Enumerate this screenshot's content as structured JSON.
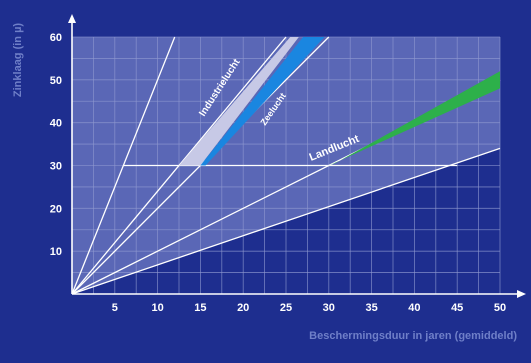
{
  "chart_data": {
    "type": "line",
    "xlabel": "Beschermingsduur in jaren (gemiddeld)",
    "ylabel": "Zinklaag (in µ)",
    "xlim": [
      0,
      50
    ],
    "ylim": [
      0,
      60
    ],
    "x_ticks": [
      5,
      10,
      15,
      20,
      25,
      30,
      35,
      40,
      45,
      50
    ],
    "y_ticks": [
      10,
      20,
      30,
      40,
      50,
      60
    ],
    "grid": true,
    "reference_lines": [
      {
        "y_at_x50": 34
      },
      {
        "y_at_x50": 50
      },
      {
        "y_at_x50": 100
      },
      {
        "y_at_x50": 120
      },
      {
        "y_at_x50": 250
      }
    ],
    "threshold_y": 30,
    "series": [
      {
        "name": "Industrielucht",
        "color": "#c7c9e6",
        "x": [
          12.5,
          25.5
        ],
        "y_low": [
          30,
          60
        ],
        "y_high": [
          30,
          60
        ],
        "x_high": [
          15,
          26.5
        ]
      },
      {
        "name": "Zeelucht",
        "color": "#1a86e0",
        "x": [
          15,
          27
        ],
        "y_low": [
          30,
          60
        ],
        "x_high": [
          15.6,
          29.5
        ]
      },
      {
        "name": "Landlucht",
        "color": "#2db04a",
        "x": [
          30,
          50
        ],
        "y_low": [
          30,
          48
        ],
        "y_high": [
          30,
          52
        ]
      }
    ]
  },
  "colors": {
    "background": "#1e2e8f",
    "plot_fill": "#5a67b6",
    "grid": "#8f99d0",
    "lines": "#ffffff",
    "axis_title": "#6f7fc8"
  }
}
